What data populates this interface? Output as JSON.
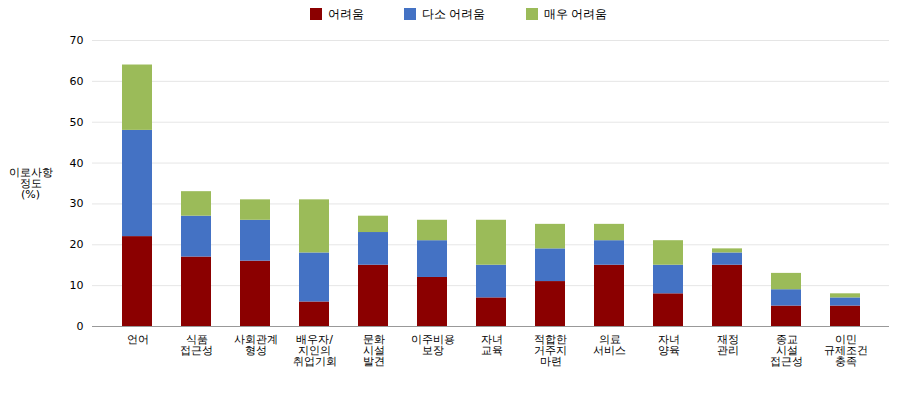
{
  "chart_data": {
    "type": "bar",
    "stacked": true,
    "categories": [
      "언어",
      "식품\n접근성",
      "사회관계\n형성",
      "배우자/\n지인의\n취업기회",
      "문화\n시설\n발견",
      "이주비용\n보장",
      "자녀\n교육",
      "적합한\n거주지\n마련",
      "의료\n서비스",
      "자녀\n양육",
      "재정\n관리",
      "종교\n시설\n접근성",
      "이민\n규제조건\n충족"
    ],
    "series": [
      {
        "name": "어려움",
        "color": "#8B0000",
        "values": [
          22,
          17,
          16,
          6,
          15,
          12,
          7,
          11,
          15,
          8,
          15,
          5,
          5
        ]
      },
      {
        "name": "다소 어려움",
        "color": "#4472C4",
        "values": [
          26,
          10,
          10,
          12,
          8,
          9,
          8,
          8,
          6,
          7,
          3,
          4,
          2
        ]
      },
      {
        "name": "매우 어려움",
        "color": "#9BBB59",
        "values": [
          16,
          6,
          5,
          13,
          4,
          5,
          11,
          6,
          4,
          6,
          1,
          4,
          1
        ]
      }
    ],
    "ylabel": "이로사항\n정도\n(%)",
    "ylim": [
      0,
      70
    ],
    "yticks": [
      0,
      10,
      20,
      30,
      40,
      50,
      60,
      70
    ],
    "grid": true,
    "legend": "top"
  }
}
